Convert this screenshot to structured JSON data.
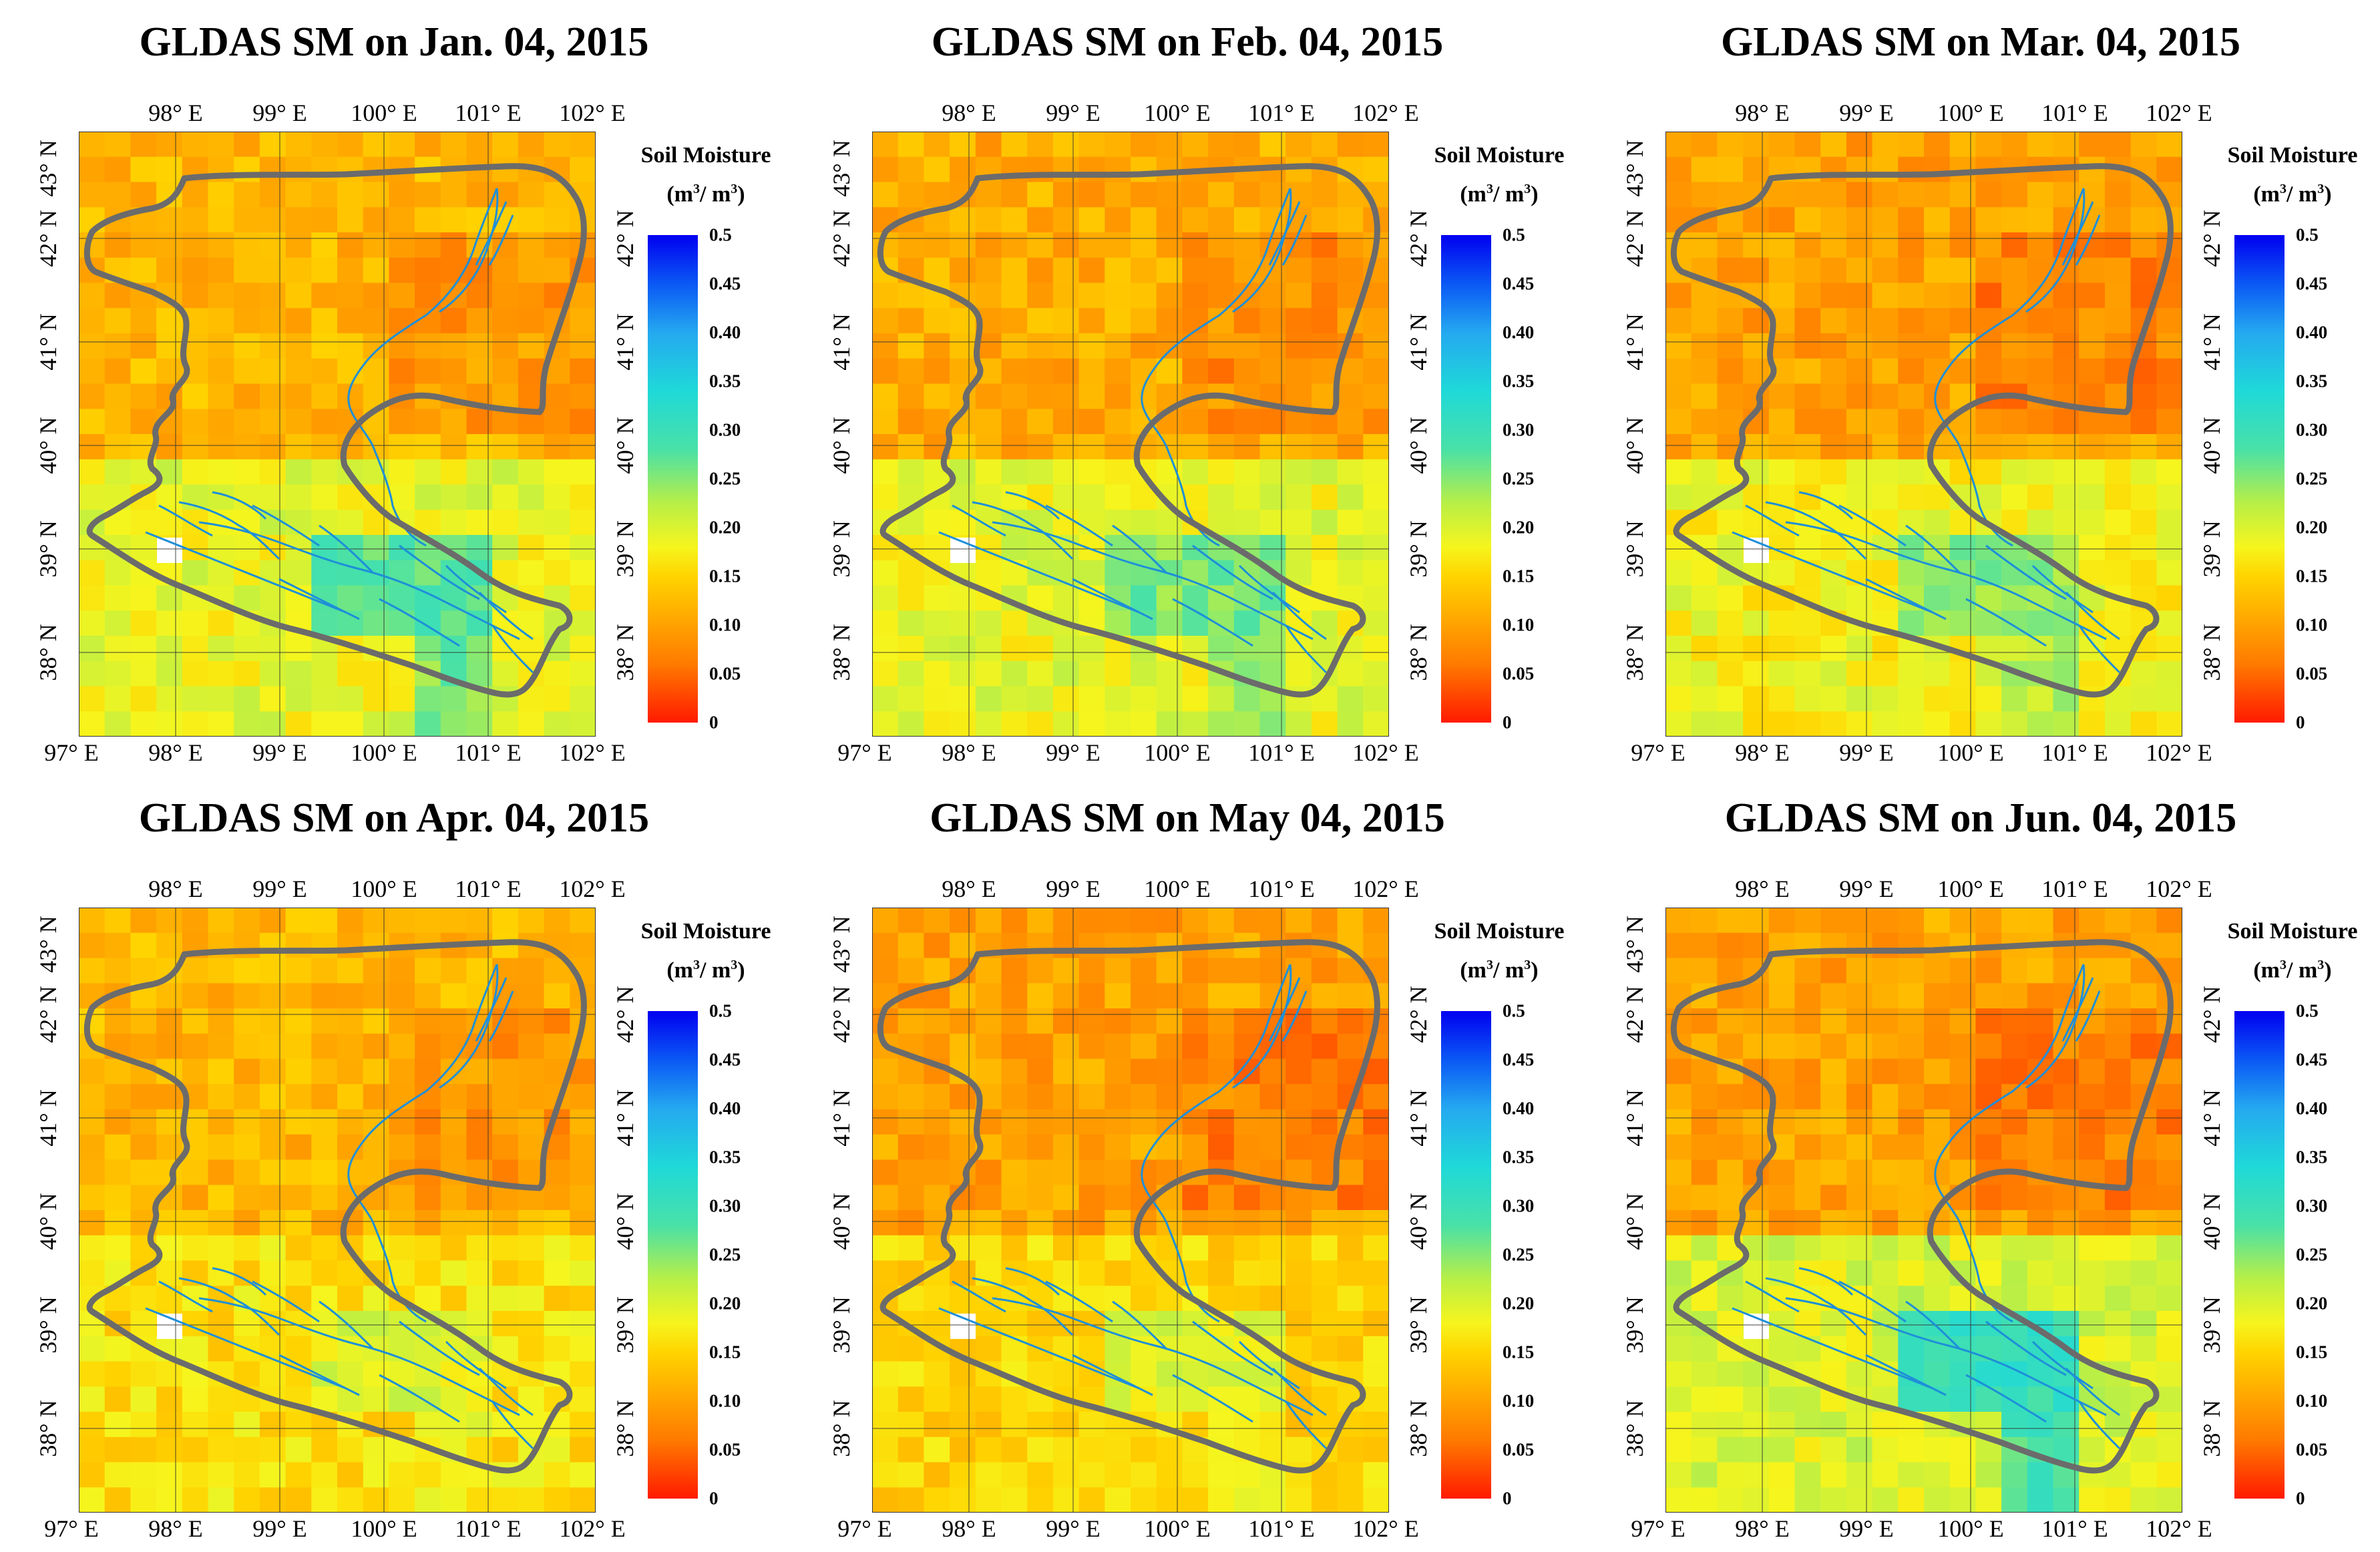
{
  "panels": [
    {
      "title": "GLDAS SM on Jan. 04, 2015"
    },
    {
      "title": "GLDAS SM on Feb. 04, 2015"
    },
    {
      "title": "GLDAS SM on Mar. 04, 2015"
    },
    {
      "title": "GLDAS SM on Apr. 04, 2015"
    },
    {
      "title": "GLDAS SM on May 04, 2015"
    },
    {
      "title": "GLDAS SM on Jun. 04, 2015"
    }
  ],
  "axes": {
    "lon_top": [
      "98° E",
      "99° E",
      "100° E",
      "101° E",
      "102° E"
    ],
    "lon_bottom": [
      "97° E",
      "98° E",
      "99° E",
      "100° E",
      "101° E",
      "102° E"
    ],
    "lat_left": [
      "43° N",
      "42° N",
      "41° N",
      "40° N",
      "39° N",
      "38° N"
    ],
    "lat_right": [
      "42° N",
      "41° N",
      "40° N",
      "39° N",
      "38° N"
    ]
  },
  "colorbar": {
    "title_line1": "Soil Moisture",
    "title_line2_base": "(m",
    "title_line2_sup": "3",
    "title_line2_mid": "/ m",
    "title_line2_sup2": "3",
    "title_line2_end": ")",
    "labels": [
      "0.5",
      "0.45",
      "0.40",
      "0.35",
      "0.30",
      "0.25",
      "0.20",
      "0.15",
      "0.10",
      "0.05",
      "0"
    ]
  },
  "colors": {
    "dry": "#ff1a00",
    "orange": "#fb9d16",
    "yellow": "#f7bd1f",
    "wet": "#0000f0",
    "boundary": "#6b6b6b",
    "river": "#1e8fd8"
  }
}
